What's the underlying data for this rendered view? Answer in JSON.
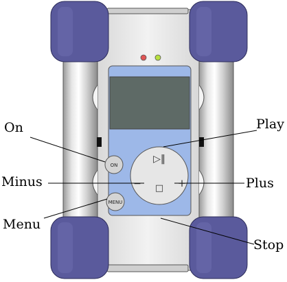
{
  "labels": {
    "on": "On",
    "minus": "Minus",
    "menu": "Menu",
    "play": "Play",
    "plus": "Plus",
    "stop": "Stop"
  },
  "device": {
    "on_button_text": "ON",
    "menu_button_text": "MENU",
    "play_pause_symbol": "▷‖",
    "minus_symbol": "−",
    "plus_symbol": "+",
    "stop_symbol": "□"
  },
  "colors": {
    "bumper": "#5a5a9c",
    "bumper_dark": "#3e3e78",
    "body": "#e3e3e3",
    "screen_panel": "#9db8e8",
    "lcd": "#5e6a66",
    "led_red": "#e05555",
    "led_green": "#b8e040"
  },
  "icons": [
    "led-red-icon",
    "led-green-icon",
    "play-pause-icon",
    "minus-icon",
    "plus-icon",
    "stop-icon"
  ]
}
